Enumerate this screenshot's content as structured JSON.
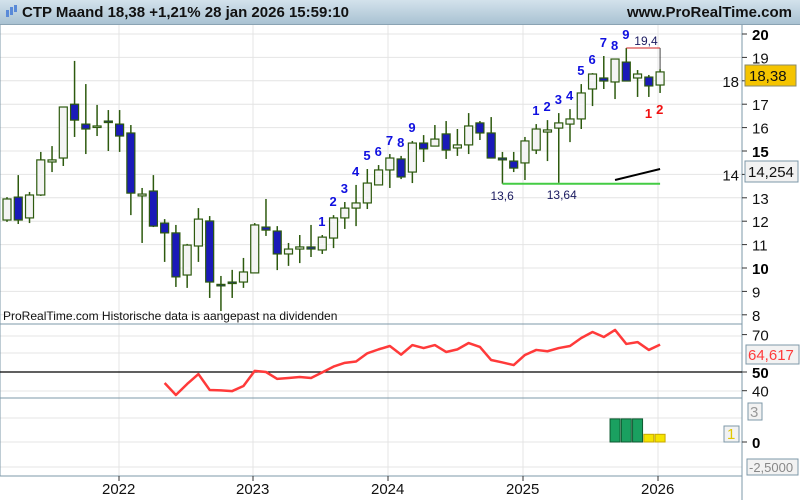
{
  "header": {
    "title": "CTP Maand 18,38 +1,21% 28 jan 2026 15:59:10",
    "site": "www.ProRealTime.com",
    "icon": "candlestick-icon"
  },
  "note": "ProRealTime.com  Historische data is aangepast na dividenden",
  "colors": {
    "bull_body": "#f4f4f4",
    "bear_body": "#1a1ab8",
    "candle_outline": "#2d5a0e",
    "rsi_line": "#ff3a3a",
    "count_blue": "#1010e0",
    "count_red": "#f01010",
    "support_line": "#44cc44",
    "hist_green": "#1aa060",
    "hist_yellow": "#f5e400",
    "price_badge": "#f5c400"
  },
  "x_axis": {
    "years": [
      "2022",
      "2023",
      "2024",
      "2025",
      "2026"
    ]
  },
  "price_axis": {
    "ticks": [
      "20",
      "19",
      "18",
      "17",
      "16",
      "15",
      "14",
      "13",
      "12",
      "11",
      "10",
      "9",
      "8"
    ],
    "bold": [
      "20",
      "15",
      "10"
    ]
  },
  "badges": {
    "last_price": "18,38",
    "trendline_value": "14,254",
    "rsi_value": "64,617",
    "hist_a": "3",
    "hist_b": "1",
    "hist_min": "-2,5000"
  },
  "rsi_axis": {
    "ticks": [
      "70",
      "50",
      "40"
    ],
    "bold": [
      "50"
    ]
  },
  "hist_axis": {
    "ticks": [
      "0"
    ]
  },
  "chart_data": [
    {
      "type": "candlestick",
      "title": "CTP Maand",
      "x": [
        "2021-03",
        "2021-04",
        "2021-05",
        "2021-06",
        "2021-07",
        "2021-08",
        "2021-09",
        "2021-10",
        "2021-11",
        "2021-12",
        "2022-01",
        "2022-02",
        "2022-03",
        "2022-04",
        "2022-05",
        "2022-06",
        "2022-07",
        "2022-08",
        "2022-09",
        "2022-10",
        "2022-11",
        "2022-12",
        "2023-01",
        "2023-02",
        "2023-03",
        "2023-04",
        "2023-05",
        "2023-06",
        "2023-07",
        "2023-08",
        "2023-09",
        "2023-10",
        "2023-11",
        "2023-12",
        "2024-01",
        "2024-02",
        "2024-03",
        "2024-04",
        "2024-05",
        "2024-06",
        "2024-07",
        "2024-08",
        "2024-09",
        "2024-10",
        "2024-11",
        "2024-12",
        "2025-01",
        "2025-02",
        "2025-03",
        "2025-04",
        "2025-05",
        "2025-06",
        "2025-07",
        "2025-08",
        "2025-09",
        "2025-10",
        "2025-11",
        "2025-12",
        "2026-01"
      ],
      "ohlc": [
        [
          12.05,
          13.03,
          11.97,
          12.95
        ],
        [
          13.03,
          13.97,
          11.88,
          12.05
        ],
        [
          12.14,
          13.25,
          11.92,
          13.12
        ],
        [
          13.12,
          14.96,
          13.08,
          14.62
        ],
        [
          14.53,
          15.21,
          14.1,
          14.62
        ],
        [
          14.7,
          16.88,
          14.36,
          16.88
        ],
        [
          17.0,
          18.85,
          15.6,
          16.32
        ],
        [
          16.15,
          17.86,
          14.87,
          15.94
        ],
        [
          16.07,
          16.97,
          15.64,
          16.07
        ],
        [
          16.28,
          16.75,
          15.0,
          16.24
        ],
        [
          16.15,
          16.75,
          14.96,
          15.64
        ],
        [
          15.77,
          16.11,
          12.26,
          13.2
        ],
        [
          13.08,
          13.42,
          11.07,
          13.16
        ],
        [
          13.29,
          13.97,
          11.75,
          11.79
        ],
        [
          11.92,
          12.09,
          10.26,
          11.5
        ],
        [
          11.5,
          11.84,
          9.19,
          9.62
        ],
        [
          9.7,
          11.03,
          9.15,
          10.98
        ],
        [
          10.94,
          12.56,
          10.26,
          12.09
        ],
        [
          12.01,
          12.22,
          8.72,
          9.4
        ],
        [
          9.3,
          9.66,
          8.16,
          9.27
        ],
        [
          9.4,
          9.92,
          8.72,
          9.36
        ],
        [
          9.4,
          10.43,
          9.15,
          9.83
        ],
        [
          9.79,
          11.92,
          9.79,
          11.84
        ],
        [
          11.75,
          12.95,
          11.37,
          11.62
        ],
        [
          11.58,
          11.79,
          9.91,
          10.6
        ],
        [
          10.6,
          11.07,
          10.09,
          10.81
        ],
        [
          10.81,
          11.41,
          10.21,
          10.9
        ],
        [
          10.9,
          11.84,
          10.47,
          10.81
        ],
        [
          10.77,
          11.41,
          10.6,
          11.32
        ],
        [
          11.28,
          12.26,
          10.85,
          12.14
        ],
        [
          12.14,
          12.82,
          11.67,
          12.56
        ],
        [
          12.56,
          13.55,
          11.79,
          12.78
        ],
        [
          12.78,
          14.23,
          12.52,
          13.63
        ],
        [
          13.55,
          14.4,
          13.55,
          14.19
        ],
        [
          14.19,
          14.87,
          13.42,
          14.7
        ],
        [
          14.66,
          14.79,
          13.8,
          13.89
        ],
        [
          14.1,
          15.43,
          13.63,
          15.34
        ],
        [
          15.34,
          15.68,
          14.53,
          15.09
        ],
        [
          15.21,
          16.11,
          15.21,
          15.51
        ],
        [
          15.73,
          16.28,
          14.66,
          15.04
        ],
        [
          15.13,
          15.94,
          14.79,
          15.26
        ],
        [
          15.26,
          16.62,
          14.87,
          16.07
        ],
        [
          16.2,
          16.28,
          15.47,
          15.77
        ],
        [
          15.77,
          16.45,
          14.7,
          14.7
        ],
        [
          14.7,
          14.96,
          13.6,
          14.62
        ],
        [
          14.57,
          14.96,
          14.1,
          14.27
        ],
        [
          14.49,
          15.6,
          13.76,
          15.43
        ],
        [
          15.04,
          16.15,
          14.87,
          15.94
        ],
        [
          15.81,
          16.32,
          14.57,
          15.9
        ],
        [
          15.98,
          16.62,
          13.64,
          16.2
        ],
        [
          16.15,
          16.79,
          15.38,
          16.37
        ],
        [
          16.37,
          17.86,
          15.94,
          17.48
        ],
        [
          17.65,
          18.33,
          16.92,
          18.29
        ],
        [
          18.12,
          19.06,
          17.65,
          17.99
        ],
        [
          17.95,
          18.93,
          17.22,
          18.93
        ],
        [
          18.8,
          19.4,
          17.99,
          17.99
        ],
        [
          18.12,
          18.46,
          17.31,
          18.29
        ],
        [
          18.16,
          18.25,
          17.31,
          17.78
        ],
        [
          17.82,
          18.5,
          17.48,
          18.38
        ]
      ],
      "ylim": [
        8,
        20
      ],
      "grid": true,
      "counts_blue": [
        {
          "x": "2023-07",
          "label": "1"
        },
        {
          "x": "2023-08",
          "label": "2"
        },
        {
          "x": "2023-09",
          "label": "3"
        },
        {
          "x": "2023-10",
          "label": "4"
        },
        {
          "x": "2023-11",
          "label": "5"
        },
        {
          "x": "2023-12",
          "label": "6"
        },
        {
          "x": "2024-01",
          "label": "7"
        },
        {
          "x": "2024-02",
          "label": "8"
        },
        {
          "x": "2024-03",
          "label": "9"
        },
        {
          "x": "2025-02",
          "label": "1"
        },
        {
          "x": "2025-03",
          "label": "2"
        },
        {
          "x": "2025-04",
          "label": "3"
        },
        {
          "x": "2025-05",
          "label": "4"
        },
        {
          "x": "2025-06",
          "label": "5"
        },
        {
          "x": "2025-07",
          "label": "6"
        },
        {
          "x": "2025-08",
          "label": "7"
        },
        {
          "x": "2025-09",
          "label": "8"
        },
        {
          "x": "2025-10",
          "label": "9"
        }
      ],
      "counts_red": [
        {
          "x": "2025-12",
          "label": "1"
        },
        {
          "x": "2026-01",
          "label": "2"
        }
      ],
      "annotations": [
        {
          "x": "2024-11",
          "y": 13.6,
          "label": "13,6"
        },
        {
          "x": "2025-04",
          "y": 13.64,
          "label": "13,64"
        },
        {
          "x": "2025-10",
          "y": 19.4,
          "label": "19,4"
        }
      ],
      "support_line": {
        "from": "2024-11",
        "to": "2026-01",
        "y": 13.6
      },
      "resistance_bracket": {
        "from": "2025-10",
        "to": "2026-01",
        "y": 19.4
      },
      "trendline": {
        "from": "2025-09",
        "to": "2026-01",
        "y_from": 13.76,
        "y_to": 14.23
      }
    },
    {
      "type": "line",
      "x_start": "2022-05",
      "values": [
        44.1,
        37.7,
        43.6,
        48.9,
        40.4,
        40.2,
        39.8,
        42.5,
        50.6,
        50.0,
        46.3,
        46.8,
        47.3,
        46.8,
        49.8,
        52.9,
        54.9,
        55.6,
        60.0,
        62.1,
        63.9,
        59.3,
        64.4,
        62.8,
        64.4,
        60.7,
        62.1,
        65.5,
        63.4,
        56.4,
        55.1,
        53.7,
        59.1,
        61.8,
        61.1,
        62.8,
        63.9,
        68.2,
        71.4,
        68.7,
        72.5,
        65.0,
        66.0,
        61.8,
        64.617
      ],
      "ylim": [
        35,
        77
      ],
      "reference_line": 50
    },
    {
      "type": "bar",
      "x": [
        "2025-09",
        "2025-10",
        "2025-11",
        "2025-12",
        "2026-01"
      ],
      "values": [
        3,
        3,
        3,
        1,
        1
      ],
      "bar_colors": [
        "green",
        "green",
        "green",
        "yellow",
        "yellow"
      ],
      "ylim": [
        -2.5,
        4
      ]
    }
  ]
}
